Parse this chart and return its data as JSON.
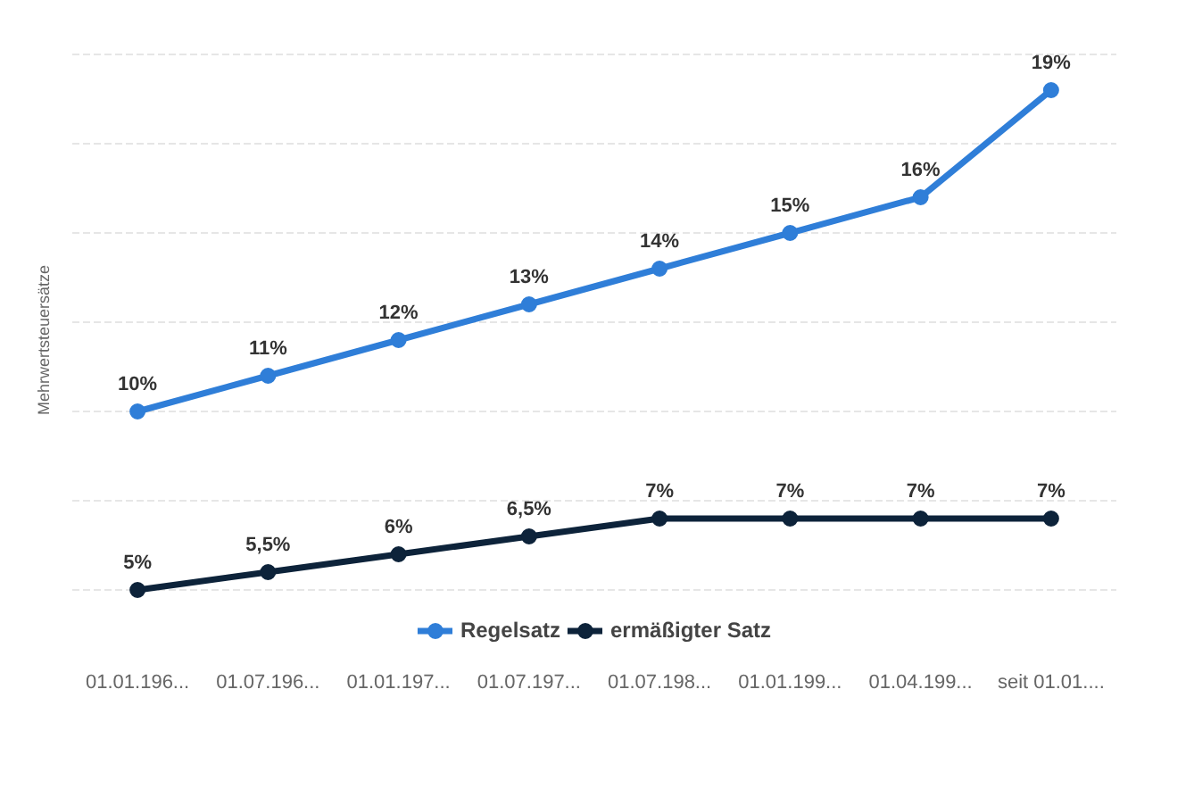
{
  "chart_data": {
    "type": "line",
    "ylabel": "Mehrwertsteuersätze",
    "categories": [
      "01.01.196...",
      "01.07.196...",
      "01.01.197...",
      "01.07.197...",
      "01.07.198...",
      "01.01.199...",
      "01.04.199...",
      "seit 01.01...."
    ],
    "series": [
      {
        "name": "Regelsatz",
        "color": "#2f7ed8",
        "values": [
          10,
          11,
          12,
          13,
          14,
          15,
          16,
          19
        ],
        "value_labels": [
          "10%",
          "11%",
          "12%",
          "13%",
          "14%",
          "15%",
          "16%",
          "19%"
        ]
      },
      {
        "name": "ermäßigter Satz",
        "color": "#0d233a",
        "values": [
          5,
          5.5,
          6,
          6.5,
          7,
          7,
          7,
          7
        ],
        "value_labels": [
          "5%",
          "5,5%",
          "6%",
          "6,5%",
          "7%",
          "7%",
          "7%",
          "7%"
        ]
      }
    ],
    "yticks": [
      {
        "value": 5,
        "label": null
      },
      {
        "value": 7.5,
        "label": null
      },
      {
        "value": 10,
        "label": null
      },
      {
        "value": 12.5,
        "label": null
      },
      {
        "value": 15,
        "label": null
      },
      {
        "value": 17.5,
        "label": null
      },
      {
        "value": 20,
        "label": null
      }
    ],
    "tick_labels": "x",
    "grid": "y",
    "legend": "bottom",
    "marker": "circle",
    "line_style": "solid"
  }
}
